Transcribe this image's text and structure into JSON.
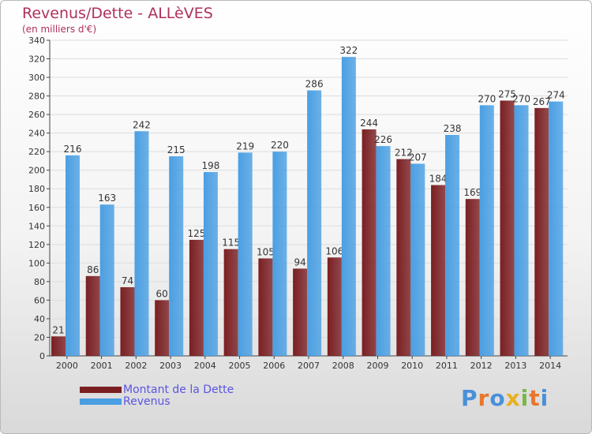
{
  "chart_data": {
    "type": "bar",
    "title": "Revenus/Dette - ALLèVES",
    "subtitle": "(en milliers d'€)",
    "categories": [
      "2000",
      "2001",
      "2002",
      "2003",
      "2004",
      "2005",
      "2006",
      "2007",
      "2008",
      "2009",
      "2010",
      "2011",
      "2012",
      "2013",
      "2014"
    ],
    "series": [
      {
        "name": "Montant de la Dette",
        "color": "#7a1f22",
        "values": [
          21,
          86,
          74,
          60,
          125,
          115,
          105,
          94,
          106,
          244,
          212,
          184,
          169,
          275,
          267
        ]
      },
      {
        "name": "Revenus",
        "color": "#4a9fe3",
        "values": [
          216,
          163,
          242,
          215,
          198,
          219,
          220,
          286,
          322,
          226,
          207,
          238,
          270,
          270,
          274
        ]
      }
    ],
    "ylim": [
      0,
      340
    ],
    "ytick_step": 20,
    "grid": true,
    "legend_position": "bottom-left"
  },
  "logo": {
    "text": "Proxiti",
    "letters": [
      {
        "ch": "P",
        "color": "#4a90d9"
      },
      {
        "ch": "r",
        "color": "#e8762c"
      },
      {
        "ch": "o",
        "color": "#4a90d9"
      },
      {
        "ch": "x",
        "color": "#e8b020"
      },
      {
        "ch": "i",
        "color": "#7ab648"
      },
      {
        "ch": "t",
        "color": "#e8762c"
      },
      {
        "ch": "i",
        "color": "#4a90d9"
      }
    ]
  }
}
